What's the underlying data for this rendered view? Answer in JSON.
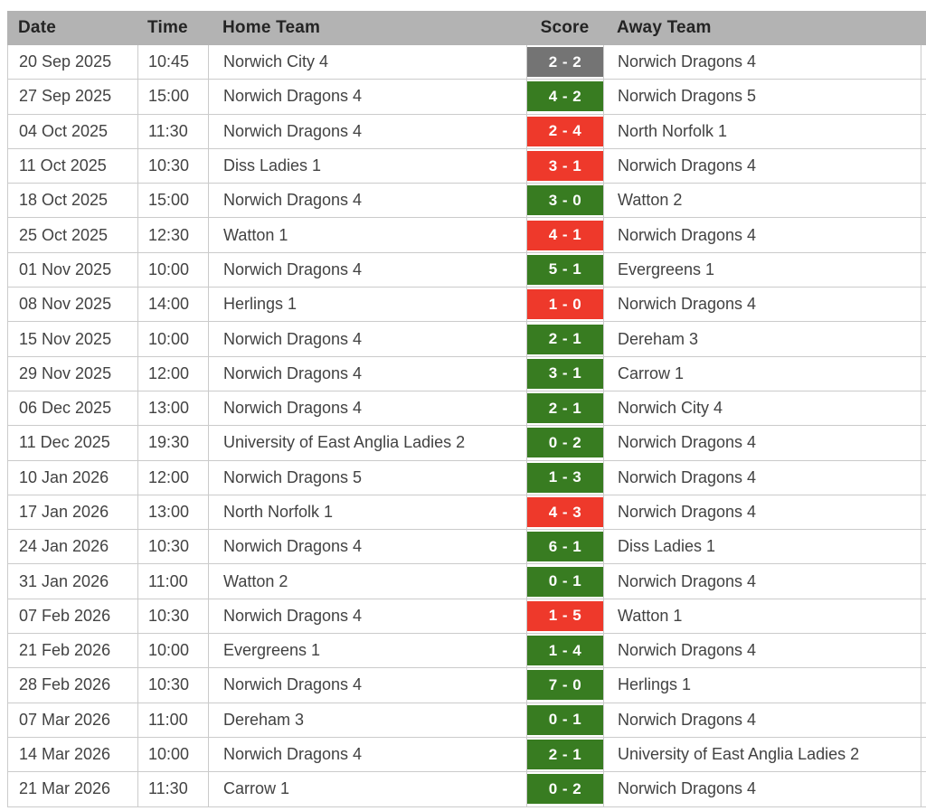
{
  "table": {
    "columns": [
      "Date",
      "Time",
      "Home Team",
      "Score",
      "Away Team"
    ],
    "colors": {
      "header_bg": "#b3b3b3",
      "header_text": "#242424",
      "body_text": "#424242",
      "border": "#cbcbcb",
      "win": "#387c21",
      "loss": "#ee392b",
      "draw": "#747474",
      "score_text": "#ffffff"
    },
    "rows": [
      {
        "date": "20 Sep 2025",
        "time": "10:45",
        "home_team": "Norwich City 4",
        "score": "2 - 2",
        "result": "draw",
        "away_team": "Norwich Dragons 4"
      },
      {
        "date": "27 Sep 2025",
        "time": "15:00",
        "home_team": "Norwich Dragons 4",
        "score": "4 - 2",
        "result": "win",
        "away_team": "Norwich Dragons 5"
      },
      {
        "date": "04 Oct 2025",
        "time": "11:30",
        "home_team": "Norwich Dragons 4",
        "score": "2 - 4",
        "result": "loss",
        "away_team": "North Norfolk 1"
      },
      {
        "date": "11 Oct 2025",
        "time": "10:30",
        "home_team": "Diss Ladies 1",
        "score": "3 - 1",
        "result": "loss",
        "away_team": "Norwich Dragons 4"
      },
      {
        "date": "18 Oct 2025",
        "time": "15:00",
        "home_team": "Norwich Dragons 4",
        "score": "3 - 0",
        "result": "win",
        "away_team": "Watton 2"
      },
      {
        "date": "25 Oct 2025",
        "time": "12:30",
        "home_team": "Watton 1",
        "score": "4 - 1",
        "result": "loss",
        "away_team": "Norwich Dragons 4"
      },
      {
        "date": "01 Nov 2025",
        "time": "10:00",
        "home_team": "Norwich Dragons 4",
        "score": "5 - 1",
        "result": "win",
        "away_team": "Evergreens 1"
      },
      {
        "date": "08 Nov 2025",
        "time": "14:00",
        "home_team": "Herlings 1",
        "score": "1 - 0",
        "result": "loss",
        "away_team": "Norwich Dragons 4"
      },
      {
        "date": "15 Nov 2025",
        "time": "10:00",
        "home_team": "Norwich Dragons 4",
        "score": "2 - 1",
        "result": "win",
        "away_team": "Dereham 3"
      },
      {
        "date": "29 Nov 2025",
        "time": "12:00",
        "home_team": "Norwich Dragons 4",
        "score": "3 - 1",
        "result": "win",
        "away_team": "Carrow 1"
      },
      {
        "date": "06 Dec 2025",
        "time": "13:00",
        "home_team": "Norwich Dragons 4",
        "score": "2 - 1",
        "result": "win",
        "away_team": "Norwich City 4"
      },
      {
        "date": "11 Dec 2025",
        "time": "19:30",
        "home_team": "University of East Anglia Ladies 2",
        "score": "0 - 2",
        "result": "win",
        "away_team": "Norwich Dragons 4"
      },
      {
        "date": "10 Jan 2026",
        "time": "12:00",
        "home_team": "Norwich Dragons 5",
        "score": "1 - 3",
        "result": "win",
        "away_team": "Norwich Dragons 4"
      },
      {
        "date": "17 Jan 2026",
        "time": "13:00",
        "home_team": "North Norfolk 1",
        "score": "4 - 3",
        "result": "loss",
        "away_team": "Norwich Dragons 4"
      },
      {
        "date": "24 Jan 2026",
        "time": "10:30",
        "home_team": "Norwich Dragons 4",
        "score": "6 - 1",
        "result": "win",
        "away_team": "Diss Ladies 1"
      },
      {
        "date": "31 Jan 2026",
        "time": "11:00",
        "home_team": "Watton 2",
        "score": "0 - 1",
        "result": "win",
        "away_team": "Norwich Dragons 4"
      },
      {
        "date": "07 Feb 2026",
        "time": "10:30",
        "home_team": "Norwich Dragons 4",
        "score": "1 - 5",
        "result": "loss",
        "away_team": "Watton 1"
      },
      {
        "date": "21 Feb 2026",
        "time": "10:00",
        "home_team": "Evergreens 1",
        "score": "1 - 4",
        "result": "win",
        "away_team": "Norwich Dragons 4"
      },
      {
        "date": "28 Feb 2026",
        "time": "10:30",
        "home_team": "Norwich Dragons 4",
        "score": "7 - 0",
        "result": "win",
        "away_team": "Herlings 1"
      },
      {
        "date": "07 Mar 2026",
        "time": "11:00",
        "home_team": "Dereham 3",
        "score": "0 - 1",
        "result": "win",
        "away_team": "Norwich Dragons 4"
      },
      {
        "date": "14 Mar 2026",
        "time": "10:00",
        "home_team": "Norwich Dragons 4",
        "score": "2 - 1",
        "result": "win",
        "away_team": "University of East Anglia Ladies 2"
      },
      {
        "date": "21 Mar 2026",
        "time": "11:30",
        "home_team": "Carrow 1",
        "score": "0 - 2",
        "result": "win",
        "away_team": "Norwich Dragons 4"
      }
    ]
  }
}
